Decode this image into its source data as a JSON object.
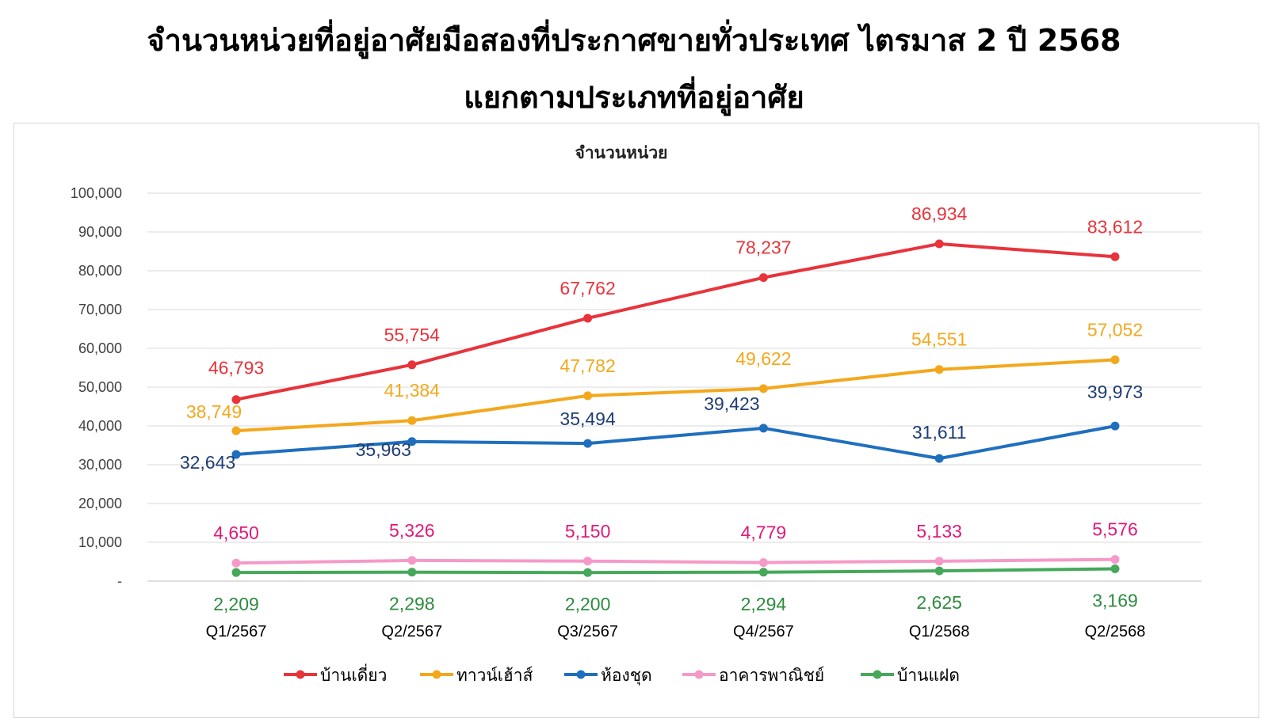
{
  "page": {
    "title_line1": "จำนวนหน่วยที่อยู่อาศัยมือสองที่ประกาศขายทั่วประเทศ ไตรมาส 2 ปี 2568",
    "title_line2": "แยกตามประเภทที่อยู่อาศัย"
  },
  "chart_data": {
    "type": "line",
    "title": "จำนวนหน่วย",
    "categories": [
      "Q1/2567",
      "Q2/2567",
      "Q3/2567",
      "Q4/2567",
      "Q1/2568",
      "Q2/2568"
    ],
    "ylim": [
      0,
      100000
    ],
    "y_ticks": [
      "-",
      "10,000",
      "20,000",
      "30,000",
      "40,000",
      "50,000",
      "60,000",
      "70,000",
      "80,000",
      "90,000",
      "100,000"
    ],
    "grid": true,
    "legend_position": "bottom",
    "series": [
      {
        "name": "บ้านเดี่ยว",
        "color": "#e8333b",
        "label_color": "#e8333b",
        "label_pos": "above",
        "values": [
          46793,
          55754,
          67762,
          78237,
          86934,
          83612
        ],
        "labels": [
          "46,793",
          "55,754",
          "67,762",
          "78,237",
          "86,934",
          "83,612"
        ]
      },
      {
        "name": "ทาวน์เฮ้าส์",
        "color": "#f3a81c",
        "label_color": "#f3a81c",
        "label_pos": "above",
        "values": [
          38749,
          41384,
          47782,
          49622,
          54551,
          57052
        ],
        "labels": [
          "38,749",
          "41,384",
          "47,782",
          "49,622",
          "54,551",
          "57,052"
        ]
      },
      {
        "name": "ห้องชุด",
        "color": "#1f6fbf",
        "label_color": "#1f3d73",
        "label_pos": "mixed",
        "values": [
          32643,
          35963,
          35494,
          39423,
          31611,
          39973
        ],
        "labels": [
          "32,643",
          "35,963",
          "35,494",
          "39,423",
          "31,611",
          "39,973"
        ]
      },
      {
        "name": "อาคารพาณิชย์",
        "color": "#f59ac8",
        "label_color": "#e0197a",
        "label_pos": "above",
        "values": [
          4650,
          5326,
          5150,
          4779,
          5133,
          5576
        ],
        "labels": [
          "4,650",
          "5,326",
          "5,150",
          "4,779",
          "5,133",
          "5,576"
        ]
      },
      {
        "name": "บ้านแฝด",
        "color": "#45a85a",
        "label_color": "#2e8b3e",
        "label_pos": "below",
        "values": [
          2209,
          2298,
          2200,
          2294,
          2625,
          3169
        ],
        "labels": [
          "2,209",
          "2,298",
          "2,200",
          "2,294",
          "2,625",
          "3,169"
        ]
      }
    ]
  }
}
